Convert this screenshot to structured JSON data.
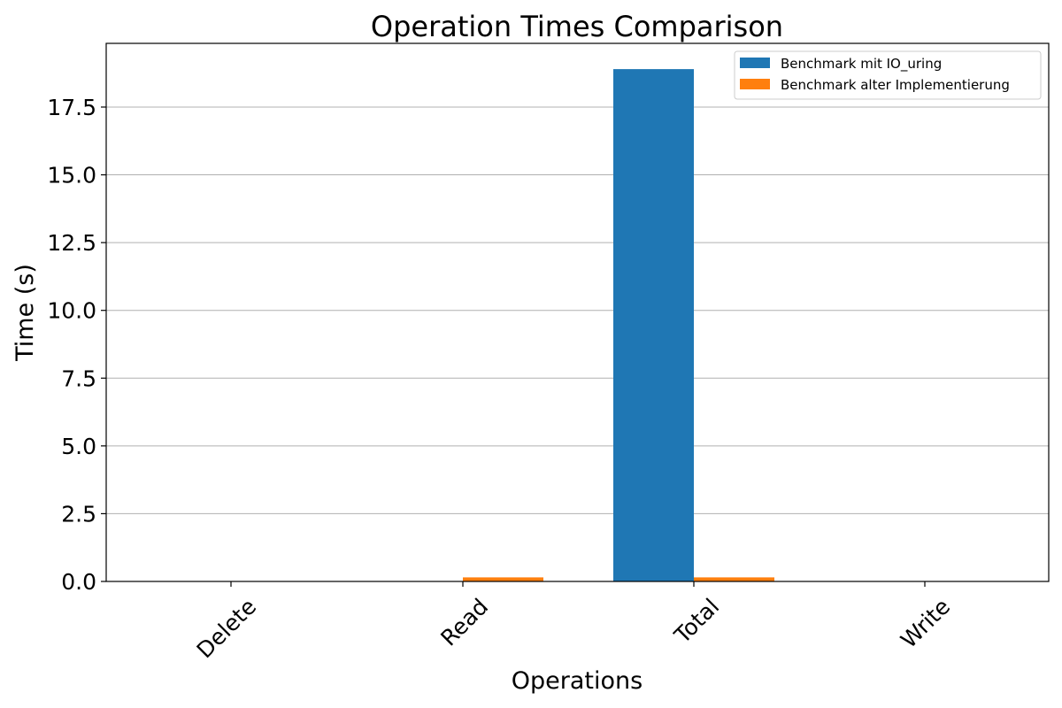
{
  "chart_data": {
    "type": "bar",
    "title": "Operation Times Comparison",
    "xlabel": "Operations",
    "ylabel": "Time (s)",
    "categories": [
      "Delete",
      "Read",
      "Total",
      "Write"
    ],
    "series": [
      {
        "name": "Benchmark mit IO_uring",
        "color": "#1f77b4",
        "values": [
          0.0,
          0.0,
          18.9,
          0.0
        ]
      },
      {
        "name": "Benchmark alter Implementierung",
        "color": "#ff7f0e",
        "values": [
          0.0,
          0.15,
          0.15,
          0.0
        ]
      }
    ],
    "ylim": [
      0,
      19.85
    ],
    "yticks": [
      "0.0",
      "2.5",
      "5.0",
      "7.5",
      "10.0",
      "12.5",
      "15.0",
      "17.5"
    ],
    "grid": "horizontal",
    "legend_position": "top-right"
  }
}
